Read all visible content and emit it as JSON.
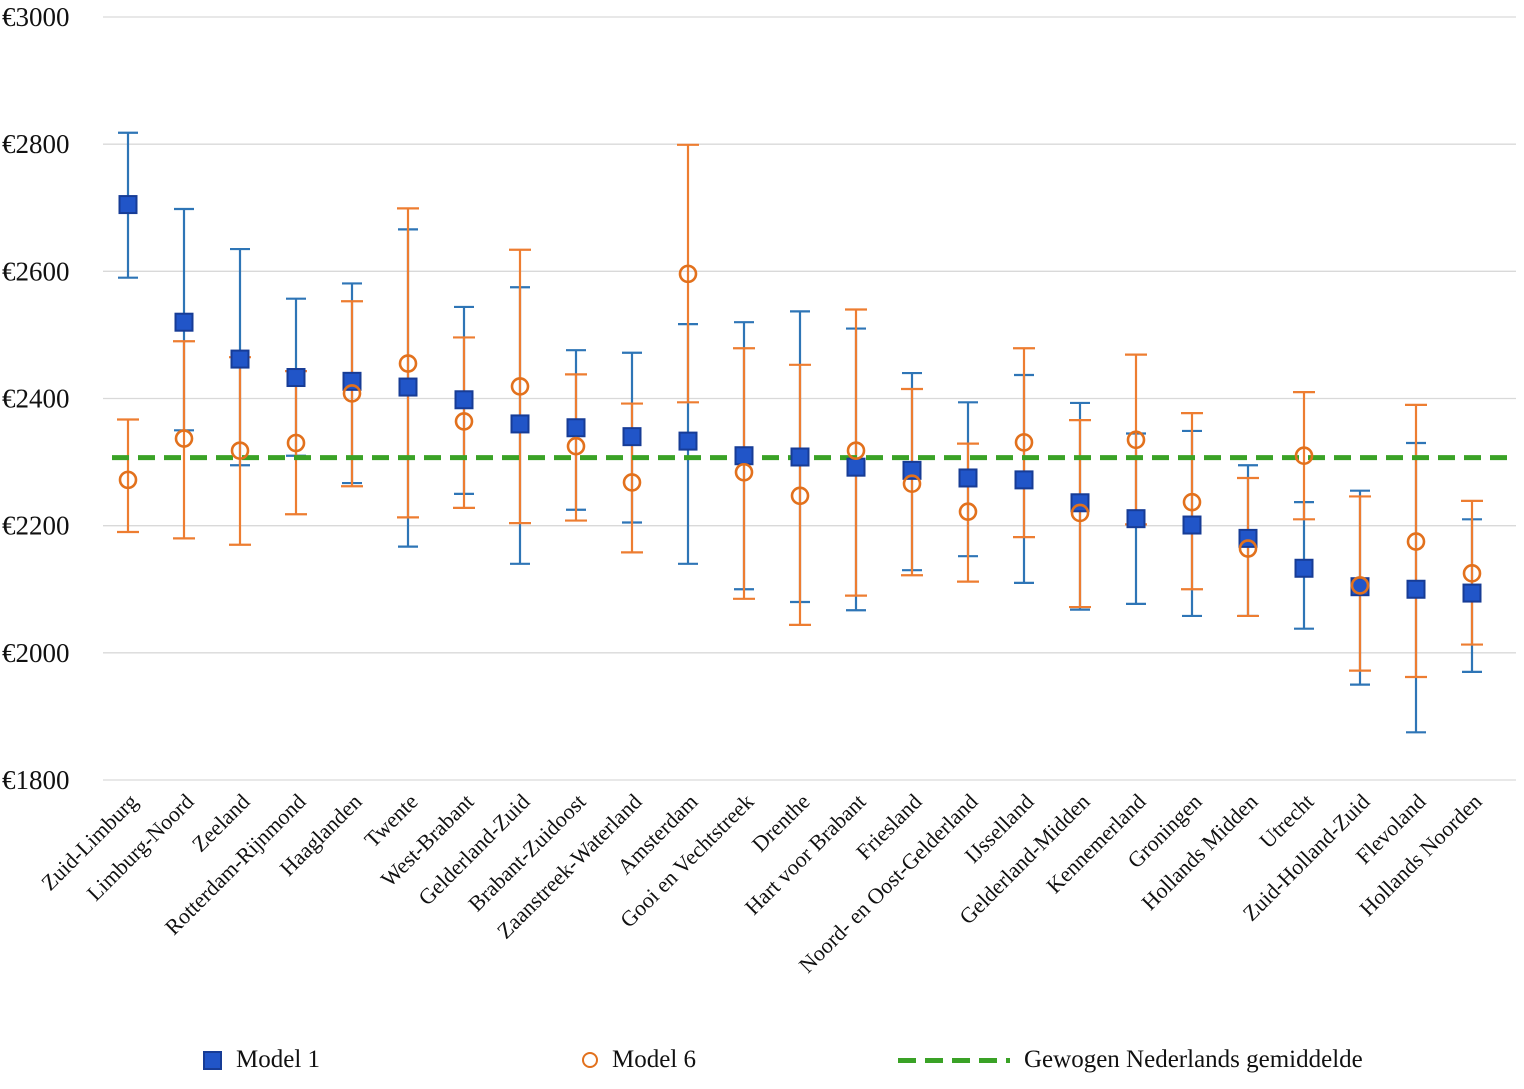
{
  "chart_data": {
    "type": "scatter",
    "title": "",
    "y_axis": {
      "min": 1800,
      "max": 3000,
      "ticks": [
        3000,
        2800,
        2600,
        2400,
        2200,
        2000,
        1800
      ],
      "tick_labels": [
        "€3000",
        "€2800",
        "€2600",
        "€2400",
        "€2200",
        "€2000",
        "€1800"
      ],
      "grid": true
    },
    "categories": [
      "Zuid-Limburg",
      "Limburg-Noord",
      "Zeeland",
      "Rotterdam-Rijnmond",
      "Haaglanden",
      "Twente",
      "West-Brabant",
      "Gelderland-Zuid",
      "Brabant-Zuidoost",
      "Zaanstreek-Waterland",
      "Amsterdam",
      "Gooi en Vechtstreek",
      "Drenthe",
      "Hart voor Brabant",
      "Friesland",
      "Noord- en Oost-Gelderland",
      "IJsselland",
      "Gelderland-Midden",
      "Kennemerland",
      "Groningen",
      "Hollands Midden",
      "Utrecht",
      "Zuid-Holland-Zuid",
      "Flevoland",
      "Hollands Noorden"
    ],
    "series": [
      {
        "name": "Model 1",
        "marker": "filled-square",
        "marker_color": "#2155c8",
        "marker_edge_color": "#173c96",
        "errorbar_color": "#2e75b6",
        "values": [
          2705,
          2520,
          2462,
          2433,
          2427,
          2418,
          2398,
          2360,
          2354,
          2340,
          2333,
          2310,
          2308,
          2292,
          2287,
          2275,
          2272,
          2236,
          2211,
          2201,
          2180,
          2133,
          2104,
          2100,
          2094
        ],
        "ci_low": [
          2590,
          2350,
          2295,
          2310,
          2267,
          2167,
          2250,
          2140,
          2225,
          2205,
          2140,
          2100,
          2080,
          2067,
          2130,
          2152,
          2110,
          2068,
          2077,
          2058,
          2058,
          2038,
          1950,
          1875,
          1970
        ],
        "ci_high": [
          2818,
          2698,
          2635,
          2557,
          2581,
          2666,
          2544,
          2575,
          2476,
          2472,
          2517,
          2520,
          2537,
          2510,
          2440,
          2394,
          2437,
          2393,
          2345,
          2349,
          2295,
          2237,
          2255,
          2330,
          2210
        ]
      },
      {
        "name": "Model 6",
        "marker": "open-circle",
        "marker_color": "#e2711d",
        "errorbar_color": "#ed7d31",
        "values": [
          2272,
          2337,
          2318,
          2330,
          2408,
          2455,
          2364,
          2419,
          2325,
          2268,
          2596,
          2284,
          2247,
          2318,
          2266,
          2222,
          2331,
          2220,
          2335,
          2237,
          2164,
          2310,
          2106,
          2175,
          2125
        ],
        "ci_low": [
          2190,
          2180,
          2170,
          2218,
          2262,
          2213,
          2228,
          2204,
          2208,
          2158,
          2394,
          2085,
          2044,
          2090,
          2122,
          2112,
          2182,
          2072,
          2202,
          2100,
          2058,
          2210,
          1972,
          1962,
          2013
        ],
        "ci_high": [
          2367,
          2490,
          2465,
          2443,
          2553,
          2699,
          2496,
          2634,
          2438,
          2392,
          2799,
          2479,
          2453,
          2540,
          2415,
          2329,
          2479,
          2366,
          2469,
          2377,
          2275,
          2410,
          2246,
          2390,
          2239
        ]
      }
    ],
    "reference_line": {
      "label": "Gewogen Nederlands gemiddelde",
      "value": 2307,
      "color": "#3aa226",
      "style": "dashed"
    },
    "legend": {
      "position": "bottom",
      "items": [
        "Model 1",
        "Model 6",
        "Gewogen Nederlands gemiddelde"
      ]
    }
  }
}
